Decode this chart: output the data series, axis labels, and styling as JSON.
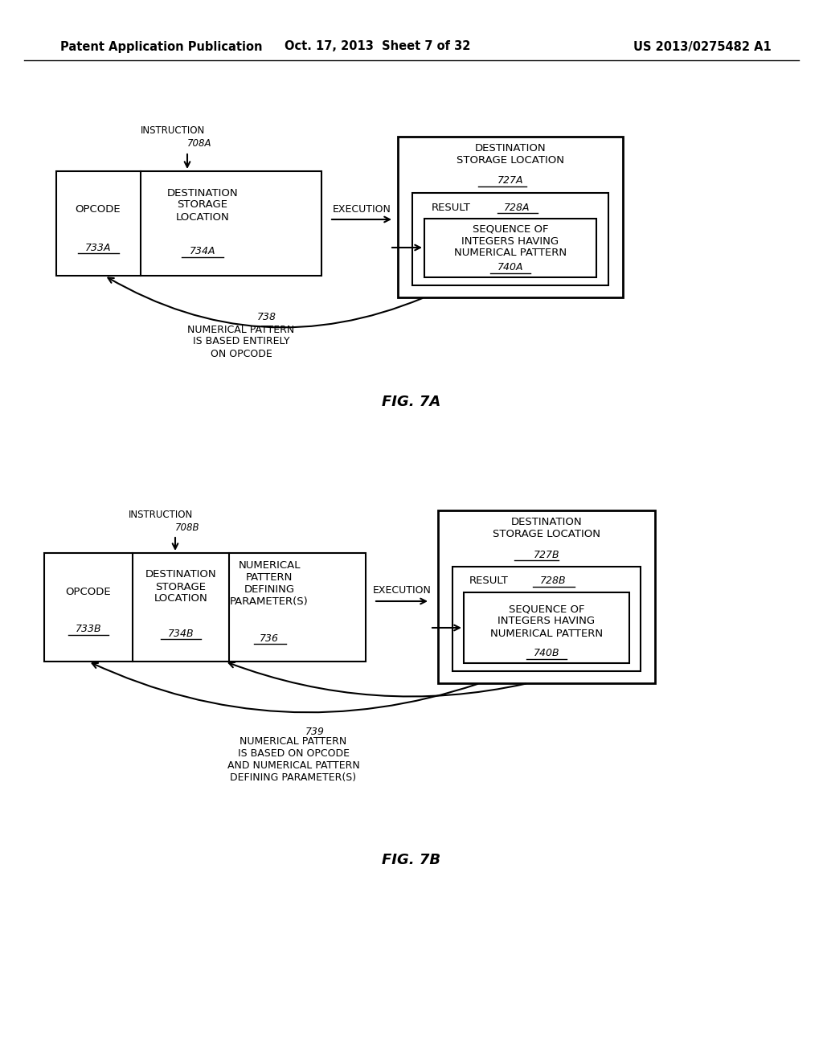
{
  "bg_color": "#ffffff",
  "header_left": "Patent Application Publication",
  "header_mid": "Oct. 17, 2013  Sheet 7 of 32",
  "header_right": "US 2013/0275482 A1",
  "fig7a": {
    "label": "FIG. 7A",
    "instr_label": "INSTRUCTION",
    "instr_ref": "708A",
    "opcode_text": "OPCODE",
    "opcode_ref": "733A",
    "dest_text": "DESTINATION\nSTORAGE\nLOCATION",
    "dest_ref": "734A",
    "exec_label": "EXECUTION",
    "dst_outer_title": "DESTINATION\nSTORAGE LOCATION",
    "dst_outer_ref": "727A",
    "result_label": "RESULT",
    "result_ref": "728A",
    "seq_text": "SEQUENCE OF\nINTEGERS HAVING\nNUMERICAL PATTERN",
    "seq_ref": "740A",
    "curve_ref": "738",
    "curve_text": "NUMERICAL PATTERN\nIS BASED ENTIRELY\nON OPCODE"
  },
  "fig7b": {
    "label": "FIG. 7B",
    "instr_label": "INSTRUCTION",
    "instr_ref": "708B",
    "opcode_text": "OPCODE",
    "opcode_ref": "733B",
    "dest_text": "DESTINATION\nSTORAGE\nLOCATION",
    "dest_ref": "734B",
    "npdp_text": "NUMERICAL\nPATTERN\nDEFINING\nPARAMETER(S)",
    "npdp_ref": "736",
    "exec_label": "EXECUTION",
    "dst_outer_title": "DESTINATION\nSTORAGE LOCATION",
    "dst_outer_ref": "727B",
    "result_label": "RESULT",
    "result_ref": "728B",
    "seq_text": "SEQUENCE OF\nINTEGERS HAVING\nNUMERICAL PATTERN",
    "seq_ref": "740B",
    "curve_ref": "739",
    "curve_text": "NUMERICAL PATTERN\nIS BASED ON OPCODE\nAND NUMERICAL PATTERN\nDEFINING PARAMETER(S)"
  }
}
